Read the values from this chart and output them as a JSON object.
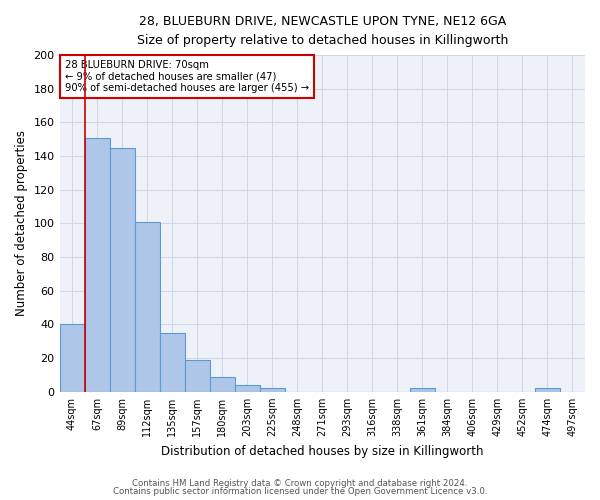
{
  "title_line1": "28, BLUEBURN DRIVE, NEWCASTLE UPON TYNE, NE12 6GA",
  "title_line2": "Size of property relative to detached houses in Killingworth",
  "xlabel": "Distribution of detached houses by size in Killingworth",
  "ylabel": "Number of detached properties",
  "footnote1": "Contains HM Land Registry data © Crown copyright and database right 2024.",
  "footnote2": "Contains public sector information licensed under the Open Government Licence v3.0.",
  "bar_labels": [
    "44sqm",
    "67sqm",
    "89sqm",
    "112sqm",
    "135sqm",
    "157sqm",
    "180sqm",
    "203sqm",
    "225sqm",
    "248sqm",
    "271sqm",
    "293sqm",
    "316sqm",
    "338sqm",
    "361sqm",
    "384sqm",
    "406sqm",
    "429sqm",
    "452sqm",
    "474sqm",
    "497sqm"
  ],
  "bar_heights": [
    40,
    151,
    145,
    101,
    35,
    19,
    9,
    4,
    2,
    0,
    0,
    0,
    0,
    0,
    2,
    0,
    0,
    0,
    0,
    2,
    0
  ],
  "bar_color": "#aec6e8",
  "bar_edge_color": "#5b9bd5",
  "grid_color": "#d0d8e8",
  "background_color": "#eef2f8",
  "fig_background_color": "#ffffff",
  "red_line_x": 0.5,
  "annotation_line1": "28 BLUEBURN DRIVE: 70sqm",
  "annotation_line2": "← 9% of detached houses are smaller (47)",
  "annotation_line3": "90% of semi-detached houses are larger (455) →",
  "annotation_box_color": "#ffffff",
  "annotation_border_color": "#cc0000",
  "ylim": [
    0,
    200
  ],
  "yticks": [
    0,
    20,
    40,
    60,
    80,
    100,
    120,
    140,
    160,
    180,
    200
  ]
}
